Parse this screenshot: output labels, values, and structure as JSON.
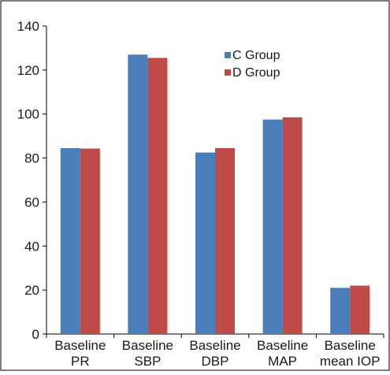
{
  "chart_data": {
    "type": "bar",
    "title": "",
    "xlabel": "",
    "ylabel": "",
    "categories": [
      [
        "Baseline",
        "PR"
      ],
      [
        "Baseline",
        "SBP"
      ],
      [
        "Baseline",
        "DBP"
      ],
      [
        "Baseline",
        "MAP"
      ],
      [
        "Baseline",
        "mean IOP"
      ]
    ],
    "series": [
      {
        "name": "C Group",
        "color": "#4a7ebb",
        "values": [
          84.5,
          127,
          82.5,
          97.5,
          21
        ]
      },
      {
        "name": "D Group",
        "color": "#be4b48",
        "values": [
          84.3,
          125.5,
          84.5,
          98.5,
          22
        ]
      }
    ],
    "ylim": [
      0,
      140
    ],
    "yticks": [
      0,
      20,
      40,
      60,
      80,
      100,
      120,
      140
    ],
    "grid": false,
    "legend_position": "top-right"
  }
}
